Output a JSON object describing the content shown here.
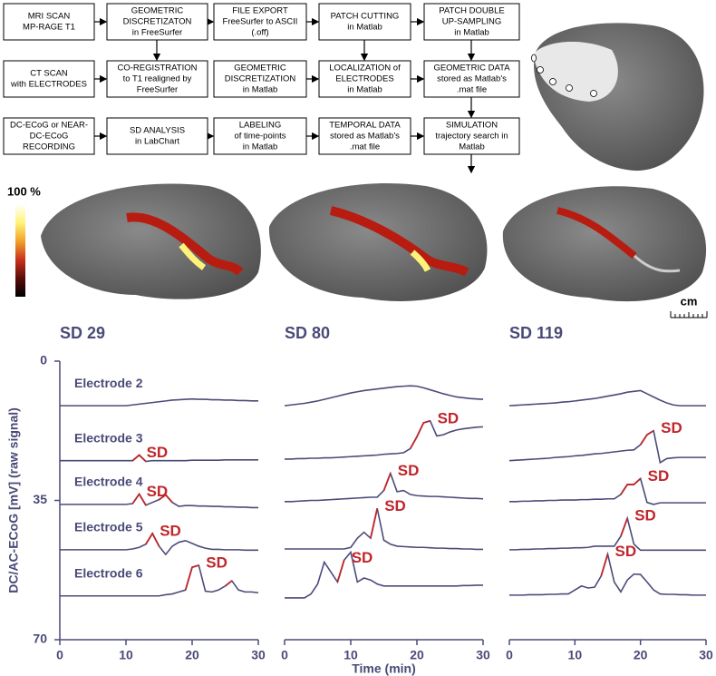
{
  "flowchart": {
    "boxes": [
      [
        "MRI SCAN",
        "MP-RAGE T1"
      ],
      [
        "GEOMETRIC",
        "DISCRETIZATON",
        "in FreeSurfer"
      ],
      [
        "FILE EXPORT",
        "FreeSurfer to ASCII",
        "(.off)"
      ],
      [
        "PATCH CUTTING",
        "in Matlab"
      ],
      [
        "PATCH DOUBLE",
        "UP-SAMPLING",
        "in Matlab"
      ],
      [
        "CT SCAN",
        "with ELECTRODES"
      ],
      [
        "CO-REGISTRATION",
        "to T1 realigned by",
        "FreeSurfer"
      ],
      [
        "GEOMETRIC",
        "DISCRETIZATION",
        "in Matlab"
      ],
      [
        "LOCALIZATION of",
        "ELECTRODES",
        "in Matlab"
      ],
      [
        "GEOMETRIC DATA",
        "stored as Matlab's",
        ".mat file"
      ],
      [
        "DC-ECoG or NEAR-",
        "DC-ECoG",
        "RECORDING"
      ],
      [
        "SD ANALYSIS",
        "in LabChart"
      ],
      [
        "LABELING",
        "of time-points",
        "in Matlab"
      ],
      [
        "TEMPORAL DATA",
        "stored as Matlab's",
        ".mat file"
      ],
      [
        "SIMULATION",
        "trajectory search in",
        "Matlab"
      ]
    ]
  },
  "colorbar": {
    "label": "100 %"
  },
  "scale_bar": {
    "label": "cm"
  },
  "chart_data": [
    {
      "type": "line",
      "title": "SD 29",
      "y_label": "DC/AC-ECoG [mV] (raw signal)",
      "xlim": [
        0,
        30
      ],
      "xticks": [
        0,
        10,
        20,
        30
      ],
      "ylim": [
        70,
        0
      ],
      "yticks": [
        0,
        35,
        70
      ],
      "x": [
        0,
        1,
        2,
        3,
        4,
        5,
        6,
        7,
        8,
        9,
        10,
        11,
        12,
        13,
        14,
        15,
        16,
        17,
        18,
        19,
        20,
        21,
        22,
        23,
        24,
        25,
        26,
        27,
        28,
        29,
        30
      ],
      "sd_color": "#c0262b",
      "series": [
        {
          "name": "Electrode 2",
          "color": "#4b4b7a",
          "values": [
            11.2,
            11.2,
            11.2,
            11.2,
            11.2,
            11.2,
            11.2,
            11.2,
            11.2,
            11.2,
            11.2,
            11.0,
            10.8,
            10.6,
            10.4,
            10.2,
            10.0,
            9.8,
            9.7,
            9.6,
            9.5,
            9.6,
            9.6,
            9.7,
            9.7,
            9.8,
            9.8,
            9.9,
            9.9,
            10.0,
            10.0
          ]
        },
        {
          "name": "Electrode 3",
          "color": "#4b4b7a",
          "values": [
            25.0,
            25.0,
            25.0,
            25.0,
            25.0,
            25.0,
            25.0,
            25.0,
            25.0,
            25.0,
            25.0,
            25.0,
            23.6,
            25.2,
            25.0,
            25.0,
            25.0,
            25.0,
            25.0,
            25.0,
            24.9,
            24.9,
            24.9,
            24.9,
            24.9,
            24.8,
            24.8,
            24.8,
            24.8,
            24.8,
            24.8
          ],
          "sd": [
            [
              11,
              13
            ]
          ],
          "sd_label": "SD"
        },
        {
          "name": "Electrode 4",
          "color": "#4b4b7a",
          "values": [
            36.0,
            36.0,
            36.0,
            36.0,
            36.0,
            36.0,
            36.0,
            36.0,
            36.0,
            36.0,
            36.0,
            35.8,
            33.4,
            36.2,
            35.5,
            34.8,
            33.6,
            35.5,
            36.5,
            36.3,
            36.3,
            36.4,
            36.4,
            36.5,
            36.5,
            36.6,
            36.6,
            36.7,
            36.7,
            36.8,
            36.8
          ],
          "sd": [
            [
              11,
              13
            ],
            [
              15,
              17
            ]
          ],
          "sd_label": "SD"
        },
        {
          "name": "Electrode 5",
          "color": "#4b4b7a",
          "values": [
            47.4,
            47.4,
            47.4,
            47.4,
            47.4,
            47.4,
            47.4,
            47.4,
            47.4,
            47.4,
            47.4,
            47.2,
            46.8,
            46.0,
            43.3,
            46.5,
            48.6,
            46.5,
            45.5,
            45.1,
            45.8,
            46.5,
            47.0,
            47.3,
            47.3,
            47.4,
            47.4,
            47.4,
            47.5,
            47.5,
            47.5
          ],
          "sd": [
            [
              13,
              15
            ]
          ],
          "sd_label": "SD"
        },
        {
          "name": "Electrode 6",
          "color": "#4b4b7a",
          "values": [
            59.0,
            59.0,
            59.0,
            59.0,
            59.0,
            59.0,
            59.0,
            59.0,
            59.0,
            59.0,
            59.0,
            59.0,
            59.0,
            59.0,
            59.0,
            59.0,
            58.7,
            58.5,
            58.0,
            57.5,
            51.8,
            51.3,
            57.8,
            58.0,
            57.5,
            56.5,
            55.2,
            57.5,
            58.0,
            58.0,
            58.2
          ],
          "sd": [
            [
              19,
              21
            ],
            [
              25,
              26
            ]
          ],
          "sd_label": "SD"
        }
      ]
    },
    {
      "type": "line",
      "title": "SD 80",
      "x_label": "Time (min)",
      "xlim": [
        0,
        30
      ],
      "xticks": [
        0,
        10,
        20,
        30
      ],
      "ylim": [
        70,
        0
      ],
      "x": [
        0,
        1,
        2,
        3,
        4,
        5,
        6,
        7,
        8,
        9,
        10,
        11,
        12,
        13,
        14,
        15,
        16,
        17,
        18,
        19,
        20,
        21,
        22,
        23,
        24,
        25,
        26,
        27,
        28,
        29,
        30
      ],
      "sd_color": "#c0262b",
      "series": [
        {
          "color": "#4b4b7a",
          "values": [
            11.2,
            11.0,
            10.8,
            10.6,
            10.3,
            10.0,
            9.6,
            9.2,
            8.8,
            8.4,
            8.0,
            7.7,
            7.4,
            7.2,
            7.0,
            6.8,
            6.6,
            6.4,
            6.3,
            6.2,
            6.3,
            6.7,
            7.2,
            7.7,
            8.2,
            8.6,
            9.0,
            9.2,
            9.4,
            9.5,
            9.6
          ]
        },
        {
          "color": "#4b4b7a",
          "values": [
            24.6,
            24.6,
            24.5,
            24.5,
            24.4,
            24.4,
            24.3,
            24.3,
            24.2,
            24.1,
            24.0,
            23.9,
            23.8,
            23.7,
            23.6,
            23.4,
            23.3,
            23.2,
            23.0,
            22.0,
            19.0,
            15.5,
            15.0,
            18.8,
            18.5,
            17.8,
            17.3,
            17.0,
            16.8,
            16.6,
            16.5
          ],
          "sd": [
            [
              19,
              22
            ]
          ],
          "sd_label": "SD"
        },
        {
          "color": "#4b4b7a",
          "values": [
            35.3,
            35.3,
            35.2,
            35.1,
            35.0,
            35.0,
            34.9,
            34.8,
            34.7,
            34.6,
            34.5,
            34.4,
            34.3,
            34.2,
            34.2,
            32.5,
            28.2,
            32.8,
            32.5,
            33.5,
            33.8,
            33.9,
            34.0,
            34.0,
            34.1,
            34.2,
            34.3,
            34.4,
            34.5,
            34.5,
            34.6
          ],
          "sd": [
            [
              15,
              16
            ]
          ],
          "sd_label": "SD"
        },
        {
          "color": "#4b4b7a",
          "values": [
            47.2,
            47.2,
            47.2,
            47.2,
            47.2,
            47.2,
            47.2,
            47.2,
            47.2,
            47.2,
            46.8,
            44.5,
            43.0,
            44.5,
            37.0,
            45.0,
            46.0,
            46.5,
            46.6,
            46.7,
            46.8,
            46.8,
            46.9,
            47.0,
            47.0,
            47.1,
            47.1,
            47.2,
            47.2,
            47.3,
            47.3
          ],
          "sd": [
            [
              13,
              14
            ]
          ],
          "sd_label": "SD"
        },
        {
          "color": "#4b4b7a",
          "values": [
            59.5,
            59.5,
            59.5,
            59.5,
            58.5,
            56.0,
            50.5,
            53.0,
            55.5,
            50.0,
            48.0,
            55.5,
            54.5,
            55.0,
            56.0,
            56.5,
            56.5,
            56.5,
            56.5,
            56.5,
            56.5,
            56.5,
            56.5,
            56.5,
            56.5,
            56.5,
            56.5,
            56.4,
            56.4,
            56.3,
            56.3
          ],
          "sd": [
            [
              8,
              9
            ]
          ],
          "sd_label": "SD"
        }
      ]
    },
    {
      "type": "line",
      "title": "SD 119",
      "xlim": [
        0,
        30
      ],
      "xticks": [
        0,
        10,
        20,
        30
      ],
      "ylim": [
        70,
        0
      ],
      "x": [
        0,
        1,
        2,
        3,
        4,
        5,
        6,
        7,
        8,
        9,
        10,
        11,
        12,
        13,
        14,
        15,
        16,
        17,
        18,
        19,
        20,
        21,
        22,
        23,
        24,
        25,
        26,
        27,
        28,
        29,
        30
      ],
      "sd_color": "#c0262b",
      "series": [
        {
          "color": "#4b4b7a",
          "values": [
            11.2,
            11.1,
            11.0,
            10.9,
            10.8,
            10.7,
            10.6,
            10.5,
            10.3,
            10.2,
            10.0,
            9.8,
            9.6,
            9.4,
            9.1,
            8.8,
            8.5,
            8.2,
            7.8,
            7.6,
            7.4,
            8.2,
            9.0,
            9.8,
            10.5,
            11.0,
            11.2,
            11.2,
            11.2,
            11.2,
            11.2
          ]
        },
        {
          "color": "#4b4b7a",
          "values": [
            25.0,
            24.9,
            24.8,
            24.7,
            24.6,
            24.5,
            24.4,
            24.2,
            24.1,
            24.0,
            23.8,
            23.7,
            23.5,
            23.3,
            23.2,
            23.0,
            22.8,
            22.6,
            22.4,
            22.3,
            21.0,
            18.5,
            17.5,
            25.5,
            24.5,
            24.3,
            24.2,
            24.2,
            24.2,
            24.2,
            24.2
          ],
          "sd": [
            [
              20,
              22
            ]
          ],
          "sd_label": "SD"
        },
        {
          "color": "#4b4b7a",
          "values": [
            35.3,
            35.3,
            35.2,
            35.2,
            35.1,
            35.1,
            35.0,
            35.0,
            34.9,
            34.9,
            34.9,
            34.8,
            34.8,
            34.7,
            34.7,
            34.6,
            34.6,
            33.5,
            31.0,
            31.0,
            29.5,
            35.5,
            36.0,
            35.6,
            35.6,
            35.6,
            35.6,
            35.6,
            35.6,
            35.6,
            35.6
          ],
          "sd": [
            [
              17,
              20
            ]
          ],
          "sd_label": "SD"
        },
        {
          "color": "#4b4b7a",
          "values": [
            47.4,
            47.4,
            47.3,
            47.3,
            47.2,
            47.2,
            47.1,
            47.1,
            47.0,
            47.0,
            46.9,
            46.9,
            46.8,
            46.5,
            46.5,
            46.5,
            46.5,
            44.0,
            39.5,
            46.0,
            47.5,
            47.5,
            47.5,
            47.5,
            47.5,
            47.5,
            47.5,
            47.5,
            47.5,
            47.5,
            47.5
          ],
          "sd": [
            [
              17,
              18
            ]
          ],
          "sd_label": "SD"
        },
        {
          "color": "#4b4b7a",
          "values": [
            58.8,
            58.8,
            58.8,
            58.7,
            58.7,
            58.7,
            58.6,
            58.6,
            58.5,
            58.5,
            57.5,
            56.5,
            57.0,
            56.8,
            54.0,
            48.5,
            55.5,
            58.0,
            55.0,
            53.5,
            53.6,
            55.5,
            57.5,
            58.5,
            58.6,
            58.6,
            58.7,
            58.7,
            58.8,
            58.8,
            58.8
          ],
          "sd": [
            [
              14,
              15
            ]
          ],
          "sd_label": "SD"
        }
      ]
    }
  ]
}
